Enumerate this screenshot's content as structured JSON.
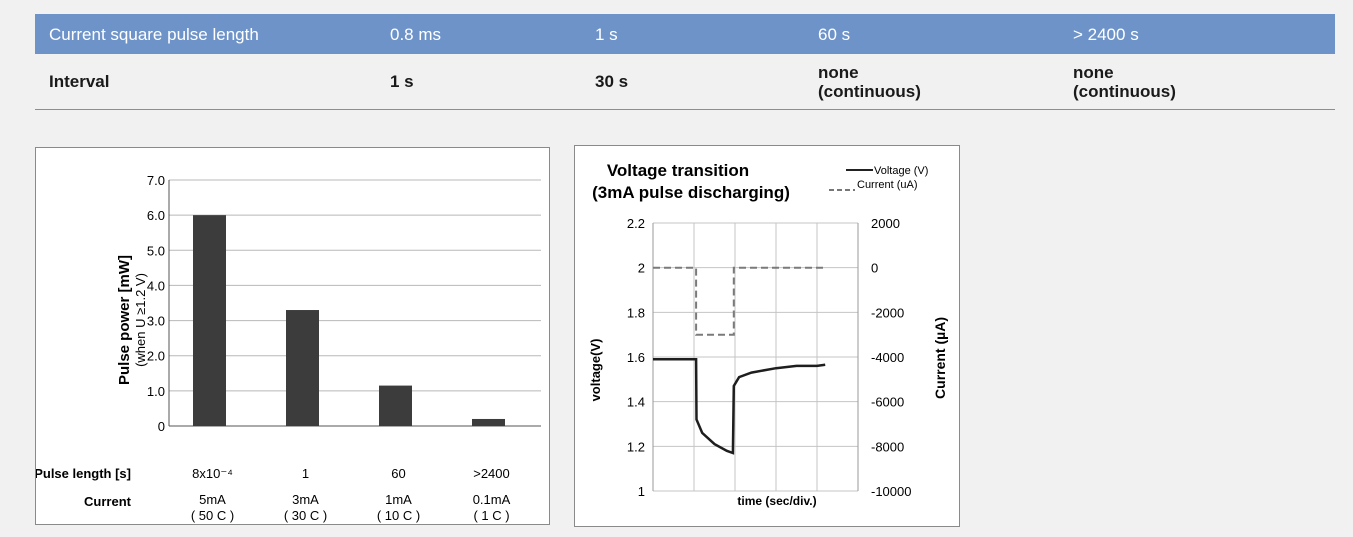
{
  "table": {
    "header": [
      "Current square pulse length",
      "0.8 ms",
      "1 s",
      "60 s",
      "> 2400 s"
    ],
    "row": [
      {
        "label": "Interval"
      },
      {
        "line1": "1 s"
      },
      {
        "line1": "30 s"
      },
      {
        "line1": "none",
        "line2": "(continuous)"
      },
      {
        "line1": "none",
        "line2": "(continuous)"
      }
    ]
  },
  "chart_data": [
    {
      "type": "bar",
      "ylabel": "Pulse power [mW]",
      "ylabel_sub": "(when U ≥1.2 V)",
      "ylim": [
        0,
        7
      ],
      "y_ticks": [
        "0",
        "1.0",
        "2.0",
        "3.0",
        "4.0",
        "5.0",
        "6.0",
        "7.0"
      ],
      "grid": true,
      "row_labels": {
        "pulse_length": "Pulse length [s]",
        "current": "Current"
      },
      "categories": [
        "8x10⁻⁴",
        "1",
        "60",
        ">2400"
      ],
      "current_labels": [
        "5mA",
        "3mA",
        "1mA",
        "0.1mA"
      ],
      "c_rate_labels": [
        "( 50 C )",
        "( 30 C )",
        "( 10 C )",
        "( 1 C )"
      ],
      "values": [
        6.0,
        3.3,
        1.15,
        0.2
      ],
      "bar_color": "#3c3c3c"
    },
    {
      "type": "line",
      "title_line1": "Voltage transition",
      "title_line2": "(3mA pulse discharging)",
      "xlabel": "time (sec/div.)",
      "ylabel": "voltage(V)",
      "y2label": "Current (µA)",
      "ylim": [
        1,
        2.2
      ],
      "y_ticks": [
        "1",
        "1.2",
        "1.4",
        "1.6",
        "1.8",
        "2",
        "2.2"
      ],
      "y2lim": [
        -10000,
        2000
      ],
      "y2_ticks": [
        "-10000",
        "-8000",
        "-6000",
        "-4000",
        "-2000",
        "0",
        "2000"
      ],
      "x_divisions": 5,
      "grid": true,
      "legend": [
        "Voltage (V)",
        "Current (uA)"
      ],
      "legend_position": "top-right",
      "series": [
        {
          "name": "Voltage (V)",
          "axis": "left",
          "style": "solid",
          "points": [
            [
              0,
              1.59
            ],
            [
              1.05,
              1.59
            ],
            [
              1.06,
              1.32
            ],
            [
              1.2,
              1.26
            ],
            [
              1.5,
              1.21
            ],
            [
              1.8,
              1.18
            ],
            [
              1.95,
              1.17
            ],
            [
              1.97,
              1.47
            ],
            [
              2.1,
              1.51
            ],
            [
              2.4,
              1.53
            ],
            [
              3,
              1.55
            ],
            [
              3.5,
              1.56
            ],
            [
              4,
              1.56
            ],
            [
              4.2,
              1.565
            ]
          ]
        },
        {
          "name": "Current (uA)",
          "axis": "right",
          "style": "dashed",
          "points": [
            [
              0,
              0
            ],
            [
              1.05,
              0
            ],
            [
              1.05,
              -3000
            ],
            [
              1.97,
              -3000
            ],
            [
              1.97,
              0
            ],
            [
              4.2,
              0
            ]
          ]
        }
      ]
    }
  ]
}
